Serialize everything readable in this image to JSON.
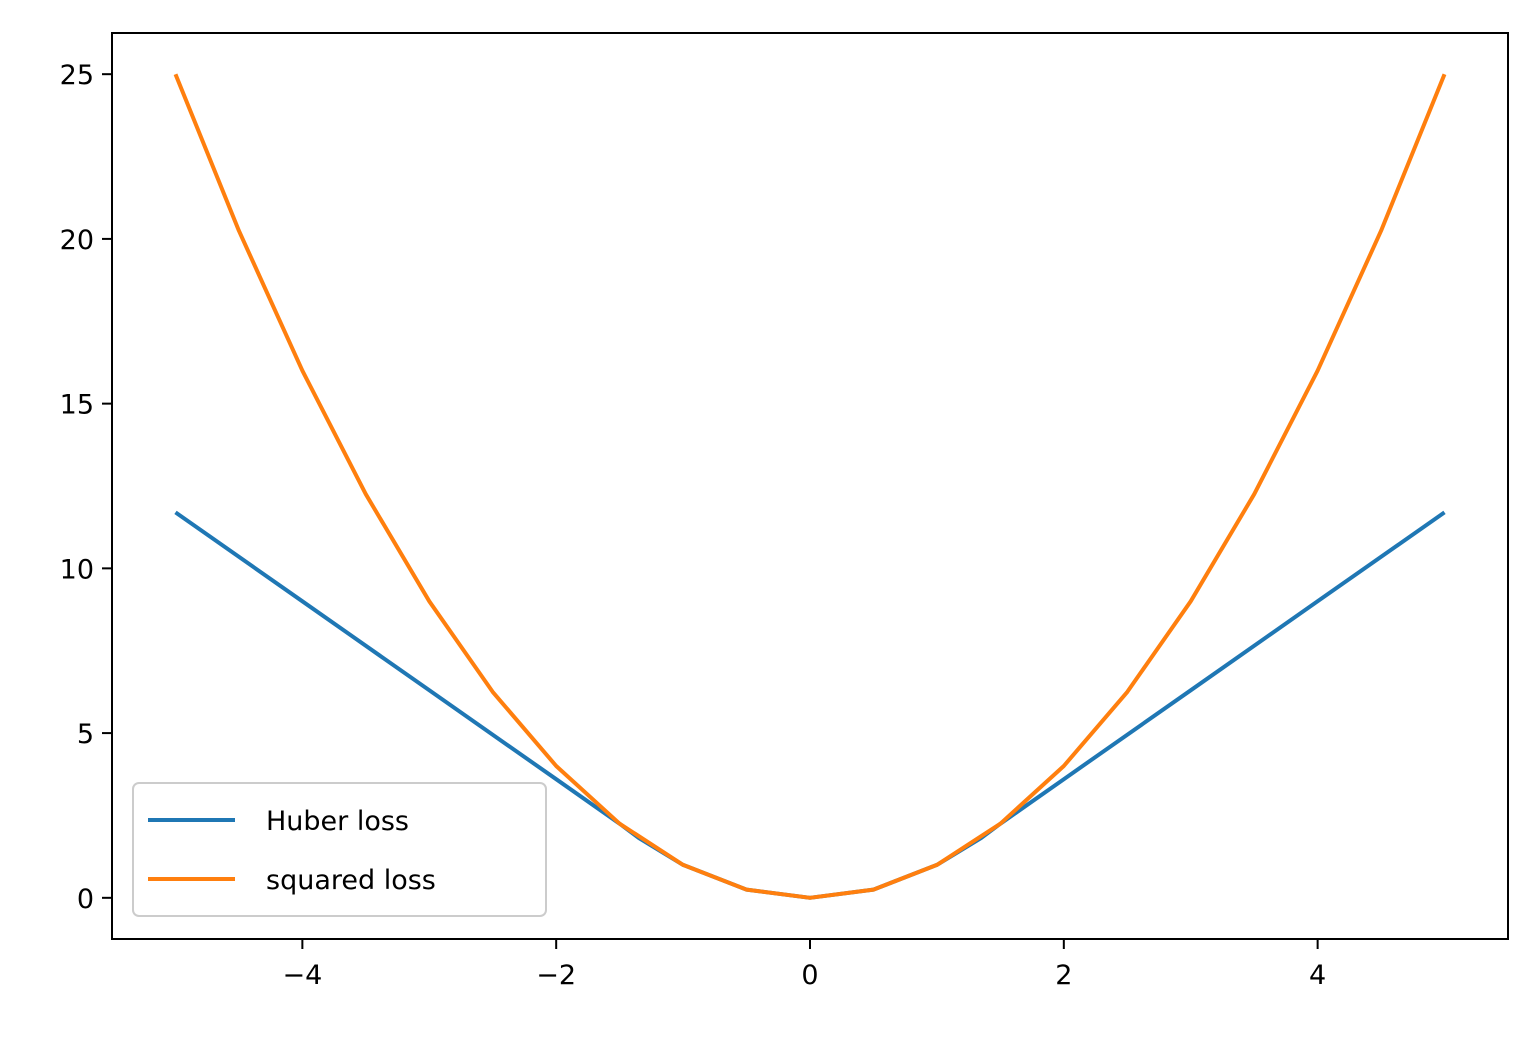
{
  "chart_data": {
    "type": "line",
    "title": "",
    "xlabel": "",
    "ylabel": "",
    "xlim": [
      -5.5,
      5.5
    ],
    "ylim": [
      -1.25,
      26.25
    ],
    "x_ticks": [
      -4,
      -2,
      0,
      2,
      4
    ],
    "x_tick_labels": [
      "−4",
      "−2",
      "0",
      "2",
      "4"
    ],
    "y_ticks": [
      0,
      5,
      10,
      15,
      20,
      25
    ],
    "y_tick_labels": [
      "0",
      "5",
      "10",
      "15",
      "20",
      "25"
    ],
    "grid": false,
    "legend_position": "lower left",
    "series": [
      {
        "name": "Huber loss",
        "color": "#1f77b4",
        "x": [
          -5,
          -4,
          -3,
          -2,
          -1.5,
          -1.35,
          -1,
          -0.5,
          0,
          0.5,
          1,
          1.35,
          1.5,
          2,
          3,
          4,
          5
        ],
        "y": [
          11.7,
          9.0,
          6.3,
          3.6,
          2.25,
          1.82,
          1.0,
          0.25,
          0,
          0.25,
          1.0,
          1.82,
          2.25,
          3.6,
          6.3,
          9.0,
          11.7
        ]
      },
      {
        "name": "squared loss",
        "color": "#ff7f0e",
        "x": [
          -5,
          -4.5,
          -4,
          -3.5,
          -3,
          -2.5,
          -2,
          -1.5,
          -1,
          -0.5,
          0,
          0.5,
          1,
          1.5,
          2,
          2.5,
          3,
          3.5,
          4,
          4.5,
          5
        ],
        "y": [
          25,
          20.25,
          16,
          12.25,
          9,
          6.25,
          4,
          2.25,
          1,
          0.25,
          0,
          0.25,
          1,
          2.25,
          4,
          6.25,
          9,
          12.25,
          16,
          20.25,
          25
        ]
      }
    ]
  }
}
